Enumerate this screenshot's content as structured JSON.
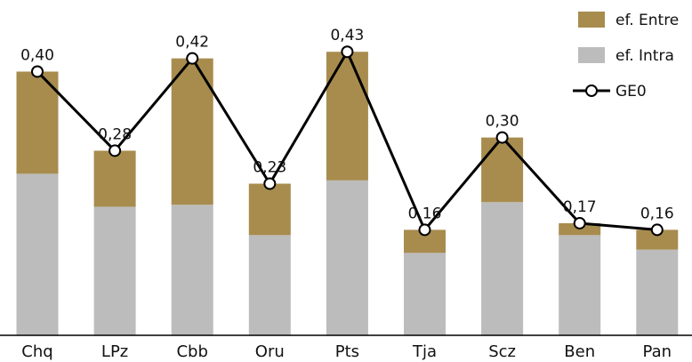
{
  "chart_data": {
    "type": "bar",
    "categories": [
      "Chq",
      "LPz",
      "Cbb",
      "Oru",
      "Pts",
      "Tja",
      "Scz",
      "Ben",
      "Pan"
    ],
    "series": [
      {
        "name": "ef. Intra",
        "kind": "stacked-bar",
        "color": "#bcbcbc",
        "values": [
          0.245,
          0.195,
          0.198,
          0.152,
          0.235,
          0.125,
          0.202,
          0.152,
          0.13
        ]
      },
      {
        "name": "ef. Entre",
        "kind": "stacked-bar",
        "color": "#a88c4e",
        "values": [
          0.155,
          0.085,
          0.222,
          0.078,
          0.195,
          0.035,
          0.098,
          0.018,
          0.03
        ]
      },
      {
        "name": "GE0",
        "kind": "line",
        "color": "#000000",
        "values": [
          0.4,
          0.28,
          0.42,
          0.23,
          0.43,
          0.16,
          0.3,
          0.17,
          0.16
        ]
      }
    ],
    "data_labels": [
      "0,40",
      "0,28",
      "0,42",
      "0,23",
      "0,43",
      "0,16",
      "0,30",
      "0,17",
      "0,16"
    ],
    "legend": [
      "ef. Entre",
      "ef. Intra",
      "GE0"
    ],
    "legend_position": "top-right",
    "ylim": [
      0,
      0.46
    ],
    "grid": false,
    "title": "",
    "xlabel": "",
    "ylabel": ""
  }
}
